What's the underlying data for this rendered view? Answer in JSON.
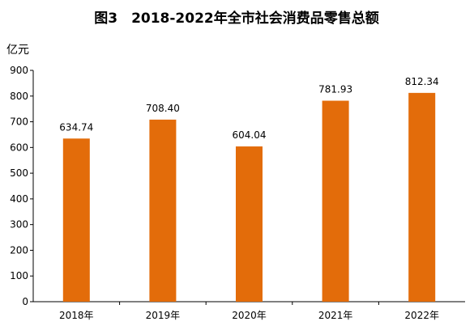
{
  "chart_data": {
    "type": "bar",
    "title": "图3　2018-2022年全市社会消费品零售总额",
    "ylabel": "亿元",
    "xlabel": "",
    "categories": [
      "2018年",
      "2019年",
      "2020年",
      "2021年",
      "2022年"
    ],
    "values": [
      634.74,
      708.4,
      604.04,
      781.93,
      812.34
    ],
    "value_labels": [
      "634.74",
      "708.40",
      "604.04",
      "781.93",
      "812.34"
    ],
    "ylim": [
      0,
      900
    ],
    "yticks": [
      0,
      100,
      200,
      300,
      400,
      500,
      600,
      700,
      800,
      900
    ],
    "grid": false,
    "legend": "none",
    "bar_color": "#E36C0A"
  }
}
